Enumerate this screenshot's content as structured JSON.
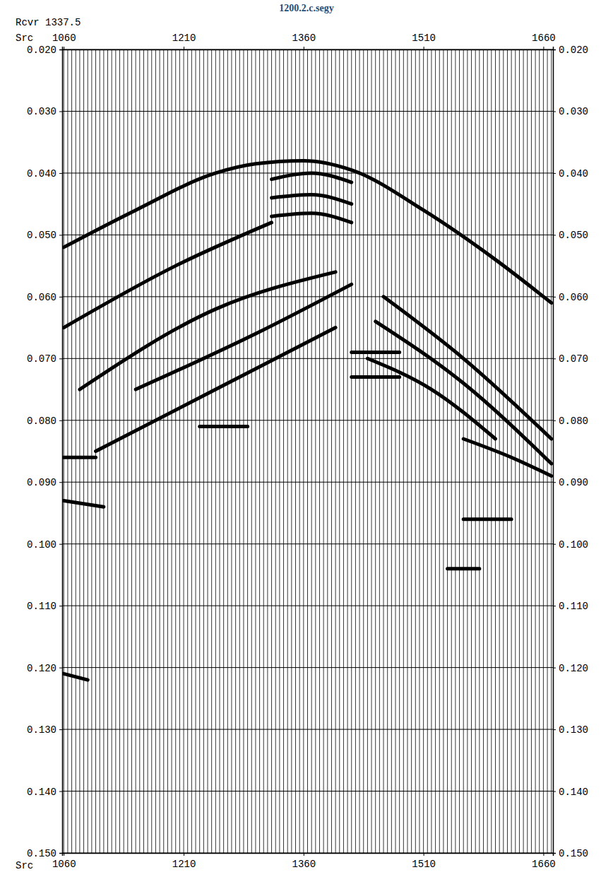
{
  "chart_data": {
    "type": "wiggle",
    "title": "1200.2.c.segy",
    "corner_label": "Rcvr",
    "corner_value": 1337.5,
    "xlabel": "Src",
    "xlim": [
      1058,
      1672
    ],
    "xticks": [
      1060,
      1210,
      1360,
      1510,
      1660
    ],
    "ylim": [
      0.15,
      0.02
    ],
    "yticks": [
      {
        "value": 0.02,
        "label": "0.020"
      },
      {
        "value": 0.03,
        "label": "0.030"
      },
      {
        "value": 0.04,
        "label": "0.040"
      },
      {
        "value": 0.05,
        "label": "0.050"
      },
      {
        "value": 0.06,
        "label": "0.060"
      },
      {
        "value": 0.07,
        "label": "0.070"
      },
      {
        "value": 0.08,
        "label": "0.080"
      },
      {
        "value": 0.09,
        "label": "0.090"
      },
      {
        "value": 0.1,
        "label": "0.100"
      },
      {
        "value": 0.11,
        "label": "0.110"
      },
      {
        "value": 0.12,
        "label": "0.120"
      },
      {
        "value": 0.13,
        "label": "0.130"
      },
      {
        "value": 0.14,
        "label": "0.140"
      },
      {
        "value": 0.15,
        "label": "0.150"
      }
    ],
    "grid": true,
    "color": "#000000",
    "traces": [
      1060,
      1065,
      1070,
      1075,
      1080,
      1085,
      1090,
      1095,
      1100,
      1105,
      1110,
      1115,
      1120,
      1125,
      1130,
      1135,
      1140,
      1145,
      1150,
      1155,
      1160,
      1165,
      1170,
      1175,
      1180,
      1185,
      1190,
      1195,
      1200,
      1205,
      1210,
      1215,
      1220,
      1225,
      1230,
      1235,
      1240,
      1245,
      1250,
      1255,
      1260,
      1265,
      1270,
      1275,
      1280,
      1285,
      1290,
      1295,
      1300,
      1305,
      1310,
      1315,
      1320,
      1325,
      1330,
      1335,
      1340,
      1345,
      1350,
      1355,
      1360,
      1365,
      1370,
      1375,
      1380,
      1385,
      1390,
      1395,
      1400,
      1405,
      1410,
      1415,
      1420,
      1425,
      1430,
      1435,
      1440,
      1445,
      1450,
      1455,
      1460,
      1465,
      1470,
      1475,
      1480,
      1485,
      1490,
      1495,
      1500,
      1505,
      1510,
      1515,
      1520,
      1525,
      1530,
      1535,
      1540,
      1545,
      1550,
      1555,
      1560,
      1565,
      1570,
      1575,
      1580,
      1585,
      1590,
      1595,
      1600,
      1605,
      1610,
      1615,
      1620,
      1625,
      1630,
      1635,
      1640,
      1645,
      1650,
      1655,
      1660,
      1665,
      1670
    ],
    "series": [
      {
        "x": [
          1060,
          1150,
          1250,
          1300,
          1360,
          1420,
          1510,
          1600,
          1670
        ],
        "values": [
          0.052,
          0.046,
          0.04,
          0.0385,
          0.038,
          0.0395,
          0.046,
          0.054,
          0.061
        ]
      },
      {
        "x": [
          1320,
          1370,
          1420
        ],
        "values": [
          0.041,
          0.04,
          0.0415
        ]
      },
      {
        "x": [
          1320,
          1370,
          1420
        ],
        "values": [
          0.044,
          0.0435,
          0.045
        ]
      },
      {
        "x": [
          1320,
          1370,
          1420
        ],
        "values": [
          0.047,
          0.0465,
          0.048
        ]
      },
      {
        "x": [
          1060,
          1200,
          1320
        ],
        "values": [
          0.065,
          0.055,
          0.048
        ]
      },
      {
        "x": [
          1080,
          1250,
          1400
        ],
        "values": [
          0.075,
          0.062,
          0.056
        ]
      },
      {
        "x": [
          1150,
          1300,
          1420
        ],
        "values": [
          0.075,
          0.066,
          0.058
        ]
      },
      {
        "x": [
          1100,
          1250,
          1400
        ],
        "values": [
          0.085,
          0.075,
          0.065
        ]
      },
      {
        "x": [
          1460,
          1560,
          1670
        ],
        "values": [
          0.06,
          0.07,
          0.083
        ]
      },
      {
        "x": [
          1450,
          1560,
          1670
        ],
        "values": [
          0.064,
          0.074,
          0.087
        ]
      },
      {
        "x": [
          1440,
          1520,
          1600
        ],
        "values": [
          0.07,
          0.075,
          0.083
        ]
      },
      {
        "x": [
          1560,
          1620,
          1670
        ],
        "values": [
          0.083,
          0.086,
          0.089
        ]
      },
      {
        "x": [
          1420,
          1480
        ],
        "values": [
          0.069,
          0.069
        ]
      },
      {
        "x": [
          1420,
          1480
        ],
        "values": [
          0.073,
          0.073
        ]
      },
      {
        "x": [
          1230,
          1290
        ],
        "values": [
          0.081,
          0.081
        ]
      },
      {
        "x": [
          1060,
          1100
        ],
        "values": [
          0.086,
          0.086
        ]
      },
      {
        "x": [
          1060,
          1110
        ],
        "values": [
          0.093,
          0.094
        ]
      },
      {
        "x": [
          1560,
          1620
        ],
        "values": [
          0.096,
          0.096
        ]
      },
      {
        "x": [
          1540,
          1580
        ],
        "values": [
          0.104,
          0.104
        ]
      },
      {
        "x": [
          1060,
          1090
        ],
        "values": [
          0.121,
          0.122
        ]
      }
    ]
  }
}
